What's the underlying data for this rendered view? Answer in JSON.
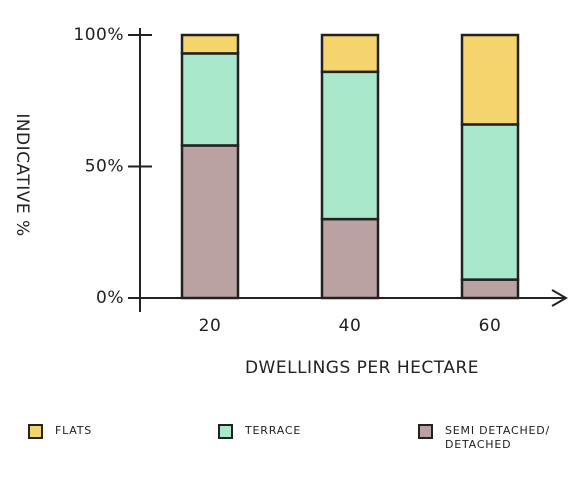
{
  "chart_data": {
    "type": "stacked_bar",
    "y_label": "INDICATIVE %",
    "x_label": "DWELLINGS PER HECTARE",
    "categories": [
      "20",
      "40",
      "60"
    ],
    "series": [
      {
        "name": "FLATS",
        "color": "#f5d46e",
        "values": [
          7,
          14,
          34
        ]
      },
      {
        "name": "TERRACE",
        "color": "#a9e8ca",
        "values": [
          35,
          56,
          59
        ]
      },
      {
        "name": "SEMI DETACHED/ DETACHED",
        "color": "#bba2a2",
        "values": [
          58,
          30,
          7
        ]
      }
    ],
    "ylim": [
      0,
      100
    ],
    "yticks": [
      {
        "value": 0,
        "label": "0%"
      },
      {
        "value": 50,
        "label": "50%"
      },
      {
        "value": 100,
        "label": "100%"
      }
    ]
  }
}
